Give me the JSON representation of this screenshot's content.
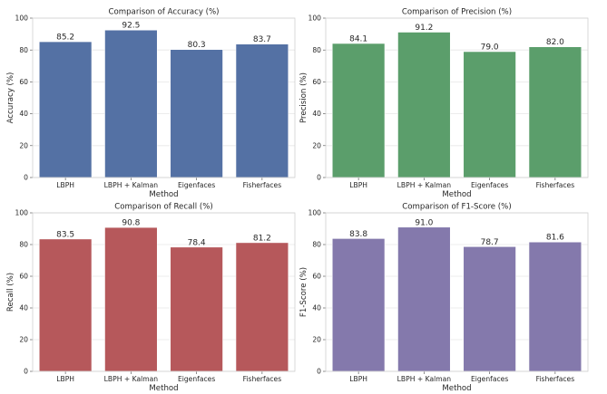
{
  "chart_data": [
    {
      "type": "bar",
      "title": "Comparison of Accuracy (%)",
      "xlabel": "Method",
      "ylabel": "Accuracy (%)",
      "categories": [
        "LBPH",
        "LBPH + Kalman",
        "Eigenfaces",
        "Fisherfaces"
      ],
      "values": [
        85.2,
        92.5,
        80.3,
        83.7
      ],
      "value_labels": [
        "85.2",
        "92.5",
        "80.3",
        "83.7"
      ],
      "ylim": [
        0,
        100
      ],
      "yticks": [
        "0",
        "20",
        "40",
        "60",
        "80",
        "100"
      ],
      "grid": true,
      "color": "#5471a4"
    },
    {
      "type": "bar",
      "title": "Comparison of Precision (%)",
      "xlabel": "Method",
      "ylabel": "Precision (%)",
      "categories": [
        "LBPH",
        "LBPH + Kalman",
        "Eigenfaces",
        "Fisherfaces"
      ],
      "values": [
        84.1,
        91.2,
        79.0,
        82.0
      ],
      "value_labels": [
        "84.1",
        "91.2",
        "79.0",
        "82.0"
      ],
      "ylim": [
        0,
        100
      ],
      "yticks": [
        "0",
        "20",
        "40",
        "60",
        "80",
        "100"
      ],
      "grid": true,
      "color": "#5b9e6b"
    },
    {
      "type": "bar",
      "title": "Comparison of Recall (%)",
      "xlabel": "Method",
      "ylabel": "Recall (%)",
      "categories": [
        "LBPH",
        "LBPH + Kalman",
        "Eigenfaces",
        "Fisherfaces"
      ],
      "values": [
        83.5,
        90.8,
        78.4,
        81.2
      ],
      "value_labels": [
        "83.5",
        "90.8",
        "78.4",
        "81.2"
      ],
      "ylim": [
        0,
        100
      ],
      "yticks": [
        "0",
        "20",
        "40",
        "60",
        "80",
        "100"
      ],
      "grid": true,
      "color": "#b6585b"
    },
    {
      "type": "bar",
      "title": "Comparison of F1-Score (%)",
      "xlabel": "Method",
      "ylabel": "F1-Score (%)",
      "categories": [
        "LBPH",
        "LBPH + Kalman",
        "Eigenfaces",
        "Fisherfaces"
      ],
      "values": [
        83.8,
        91.0,
        78.7,
        81.6
      ],
      "value_labels": [
        "83.8",
        "91.0",
        "78.7",
        "81.6"
      ],
      "ylim": [
        0,
        100
      ],
      "yticks": [
        "0",
        "20",
        "40",
        "60",
        "80",
        "100"
      ],
      "grid": true,
      "color": "#8479ac"
    }
  ]
}
